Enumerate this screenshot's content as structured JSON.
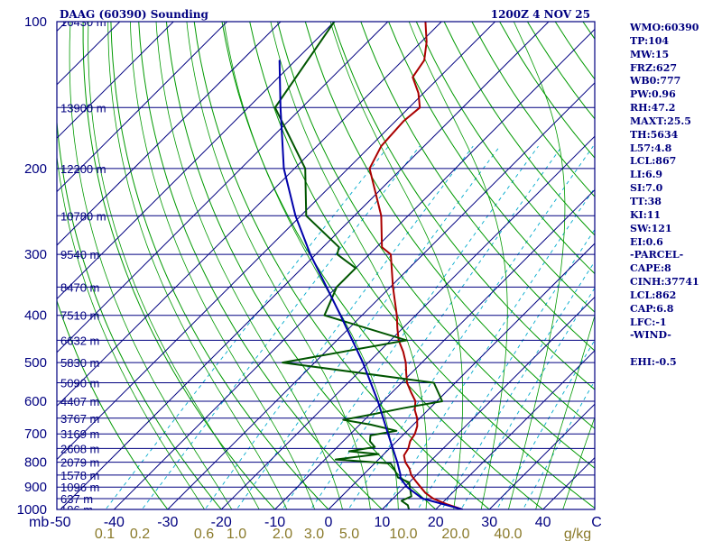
{
  "header": {
    "station": "DAAG (60390) Sounding",
    "time": "1200Z  4 NOV 25"
  },
  "indices": [
    "WMO:60390",
    "TP:104",
    "MW:15",
    "FRZ:627",
    "WB0:777",
    "PW:0.96",
    "RH:47.2",
    "MAXT:25.5",
    "TH:5634",
    "L57:4.8",
    "LCL:867",
    "LI:6.9",
    "SI:7.0",
    "TT:38",
    "KI:11",
    "SW:121",
    "EI:0.6",
    "-PARCEL-",
    "CAPE:8",
    "CINH:37741",
    "LCL:862",
    "CAP:6.8",
    "LFC:-1",
    "-WIND-",
    "",
    "EHI:-0.5"
  ],
  "colors": {
    "frame": "#000080",
    "isobar": "#000080",
    "isotherm": "#000080",
    "dry_adiabat": "#009900",
    "moist_adiabat": "#009900",
    "mixing_ratio": "#00aacc",
    "temperature": "#aa0000",
    "dewpoint": "#005500",
    "parcel": "#0000aa",
    "mixing_ratio_label": "#8a7a2a"
  },
  "chart_data": {
    "type": "line",
    "title": "DAAG (60390) Sounding",
    "subtitle": "1200Z  4 NOV 25",
    "y_scale": "log-pressure",
    "pressure_unit": "mb",
    "ylim": [
      1000,
      100
    ],
    "xlim": [
      -50,
      50
    ],
    "pressure_ticks": [
      100,
      200,
      300,
      400,
      500,
      600,
      700,
      800,
      900,
      1000
    ],
    "temperature_ticks": [
      "-50",
      "-40",
      "-30",
      "-20",
      "-10",
      "0",
      "10",
      "20",
      "30",
      "40",
      "C"
    ],
    "mixing_ratio_ticks": [
      "0.1",
      "0.2",
      "0.6",
      "1.0",
      "2.0",
      "3.0",
      "5.0",
      "10.0",
      "20.0",
      "40.0",
      "g/kg"
    ],
    "height_labels": [
      {
        "p": 100,
        "label": "16430 m"
      },
      {
        "p": 150,
        "label": "13900 m"
      },
      {
        "p": 200,
        "label": "12200 m"
      },
      {
        "p": 250,
        "label": "10780 m"
      },
      {
        "p": 300,
        "label": "9540 m"
      },
      {
        "p": 350,
        "label": "8470 m"
      },
      {
        "p": 400,
        "label": "7510 m"
      },
      {
        "p": 450,
        "label": "6632 m"
      },
      {
        "p": 500,
        "label": "5830 m"
      },
      {
        "p": 550,
        "label": "5090 m"
      },
      {
        "p": 600,
        "label": "4407 m"
      },
      {
        "p": 650,
        "label": "3767 m"
      },
      {
        "p": 700,
        "label": "3169 m"
      },
      {
        "p": 750,
        "label": "2608 m"
      },
      {
        "p": 800,
        "label": "2079 m"
      },
      {
        "p": 850,
        "label": "1578 m"
      },
      {
        "p": 900,
        "label": "1096 m"
      },
      {
        "p": 950,
        "label": "637 m"
      },
      {
        "p": 1000,
        "label": "196 m"
      }
    ],
    "series": [
      {
        "key": "temperature",
        "points": [
          {
            "p": 1000,
            "t": 25.0
          },
          {
            "p": 975,
            "t": 21.0
          },
          {
            "p": 950,
            "t": 17.5
          },
          {
            "p": 925,
            "t": 15.0
          },
          {
            "p": 900,
            "t": 13.0
          },
          {
            "p": 875,
            "t": 11.0
          },
          {
            "p": 850,
            "t": 9.0
          },
          {
            "p": 825,
            "t": 7.5
          },
          {
            "p": 800,
            "t": 5.5
          },
          {
            "p": 775,
            "t": 4.0
          },
          {
            "p": 750,
            "t": 3.5
          },
          {
            "p": 725,
            "t": 2.5
          },
          {
            "p": 700,
            "t": 2.0
          },
          {
            "p": 675,
            "t": 1.0
          },
          {
            "p": 650,
            "t": -0.5
          },
          {
            "p": 625,
            "t": -2.5
          },
          {
            "p": 600,
            "t": -4.0
          },
          {
            "p": 575,
            "t": -6.5
          },
          {
            "p": 550,
            "t": -9.0
          },
          {
            "p": 525,
            "t": -11.0
          },
          {
            "p": 500,
            "t": -13.0
          },
          {
            "p": 475,
            "t": -15.5
          },
          {
            "p": 450,
            "t": -18.5
          },
          {
            "p": 425,
            "t": -21.0
          },
          {
            "p": 400,
            "t": -23.5
          },
          {
            "p": 350,
            "t": -29.5
          },
          {
            "p": 300,
            "t": -36.0
          },
          {
            "p": 290,
            "t": -39.0
          },
          {
            "p": 250,
            "t": -45.0
          },
          {
            "p": 200,
            "t": -56.0
          },
          {
            "p": 180,
            "t": -58.0
          },
          {
            "p": 160,
            "t": -58.5
          },
          {
            "p": 150,
            "t": -58.0
          },
          {
            "p": 140,
            "t": -61.0
          },
          {
            "p": 130,
            "t": -65.0
          },
          {
            "p": 120,
            "t": -66.0
          },
          {
            "p": 110,
            "t": -69.0
          },
          {
            "p": 100,
            "t": -73.0
          }
        ]
      },
      {
        "key": "dewpoint",
        "points": [
          {
            "p": 1000,
            "t": 15.0
          },
          {
            "p": 980,
            "t": 14.0
          },
          {
            "p": 960,
            "t": 12.0
          },
          {
            "p": 940,
            "t": 13.0
          },
          {
            "p": 900,
            "t": 11.0
          },
          {
            "p": 880,
            "t": 10.0
          },
          {
            "p": 860,
            "t": 7.0
          },
          {
            "p": 830,
            "t": 5.0
          },
          {
            "p": 805,
            "t": 3.0
          },
          {
            "p": 790,
            "t": -8.0
          },
          {
            "p": 770,
            "t": -1.0
          },
          {
            "p": 760,
            "t": -7.0
          },
          {
            "p": 745,
            "t": -3.0
          },
          {
            "p": 725,
            "t": -5.0
          },
          {
            "p": 705,
            "t": -6.0
          },
          {
            "p": 690,
            "t": -2.0
          },
          {
            "p": 670,
            "t": -8.0
          },
          {
            "p": 655,
            "t": -14.0
          },
          {
            "p": 640,
            "t": -10.0
          },
          {
            "p": 620,
            "t": -5.0
          },
          {
            "p": 600,
            "t": 1.0
          },
          {
            "p": 550,
            "t": -4.0
          },
          {
            "p": 500,
            "t": -36.0
          },
          {
            "p": 450,
            "t": -17.0
          },
          {
            "p": 400,
            "t": -37.0
          },
          {
            "p": 350,
            "t": -40.0
          },
          {
            "p": 320,
            "t": -40.0
          },
          {
            "p": 300,
            "t": -46.0
          },
          {
            "p": 290,
            "t": -47.0
          },
          {
            "p": 250,
            "t": -59.0
          },
          {
            "p": 200,
            "t": -68.0
          },
          {
            "p": 150,
            "t": -85.0
          },
          {
            "p": 100,
            "t": -90.0
          }
        ]
      },
      {
        "key": "parcel",
        "points": [
          {
            "p": 1000,
            "t": 25.0
          },
          {
            "p": 950,
            "t": 15.5
          },
          {
            "p": 900,
            "t": 10.5
          },
          {
            "p": 862,
            "t": 7.5
          },
          {
            "p": 850,
            "t": 7.0
          },
          {
            "p": 800,
            "t": 4.0
          },
          {
            "p": 700,
            "t": -3.0
          },
          {
            "p": 600,
            "t": -11.0
          },
          {
            "p": 500,
            "t": -21.0
          },
          {
            "p": 400,
            "t": -34.0
          },
          {
            "p": 300,
            "t": -51.0
          },
          {
            "p": 250,
            "t": -61.0
          },
          {
            "p": 200,
            "t": -72.0
          },
          {
            "p": 150,
            "t": -84.0
          },
          {
            "p": 120,
            "t": -93.0
          }
        ]
      }
    ]
  }
}
